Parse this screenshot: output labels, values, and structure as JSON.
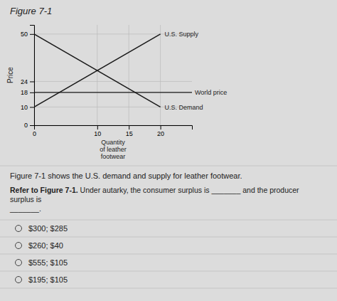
{
  "chart_data": {
    "type": "line",
    "title": "Figure 7-1",
    "x_label": "Quantity\nof leather\nfootwear",
    "y_label": "Price",
    "x": [
      0,
      20
    ],
    "series": [
      {
        "name": "U.S. Supply",
        "color": "#1a1a1a",
        "values": [
          10,
          50
        ]
      },
      {
        "name": "U.S. Demand",
        "color": "#1a1a1a",
        "values": [
          50,
          10
        ]
      }
    ],
    "reference_lines": [
      {
        "name": "World price",
        "value": 18,
        "color": "#1a1a1a"
      }
    ],
    "xlim": [
      0,
      25
    ],
    "ylim": [
      0,
      55
    ],
    "xticks": [
      0,
      10,
      15,
      20
    ],
    "yticks": [
      0,
      10,
      18,
      24,
      50
    ],
    "grid": true
  },
  "background": "#dcdcdc",
  "caption": "Figure 7-1 shows the U.S. demand and supply for leather footwear.",
  "question_bold": "Refer to Figure 7-1.",
  "question_text": " Under autarky, the consumer surplus is _______ and the producer surplus is\n_______.",
  "options": [
    "$300; $285",
    "$260; $40",
    "$555; $105",
    "$195; $105"
  ]
}
